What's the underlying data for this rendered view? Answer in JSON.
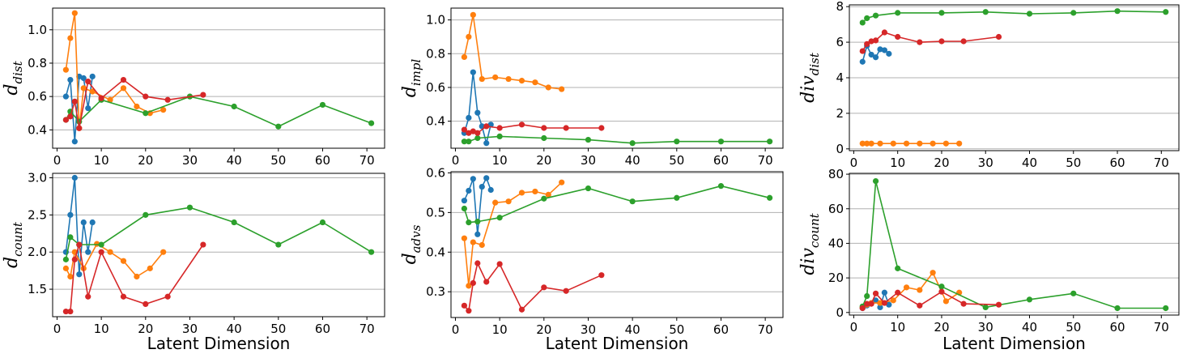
{
  "colors": {
    "blue": "#1f77b4",
    "orange": "#ff7f0e",
    "green": "#2ca02c",
    "red": "#d62728",
    "grid": "#b0b0b0"
  },
  "chart_data": [
    {
      "type": "line",
      "ylabel": {
        "base": "d",
        "sub": "dist"
      },
      "xlabel": "",
      "xlim": [
        -1,
        74
      ],
      "ylim": [
        0.29,
        1.13
      ],
      "xticks": [
        0,
        10,
        20,
        30,
        40,
        50,
        60,
        70
      ],
      "yticks": [
        0.4,
        0.6,
        0.8,
        1.0
      ],
      "ytick_labels": [
        "0.4",
        "0.6",
        "0.8",
        "1.0"
      ],
      "grid": "y",
      "series": [
        {
          "color": "blue",
          "x": [
            2,
            3,
            4,
            5,
            6,
            7,
            8
          ],
          "y": [
            0.6,
            0.7,
            0.33,
            0.72,
            0.71,
            0.53,
            0.72
          ]
        },
        {
          "color": "orange",
          "x": [
            2,
            3,
            4,
            5,
            6,
            8,
            12,
            15,
            18,
            21,
            24
          ],
          "y": [
            0.76,
            0.95,
            1.1,
            0.41,
            0.65,
            0.63,
            0.58,
            0.65,
            0.54,
            0.5,
            0.52
          ]
        },
        {
          "color": "green",
          "x": [
            2,
            3,
            5,
            10,
            20,
            30,
            40,
            50,
            60,
            71
          ],
          "y": [
            0.46,
            0.51,
            0.45,
            0.58,
            0.5,
            0.6,
            0.54,
            0.42,
            0.55,
            0.44
          ]
        },
        {
          "color": "red",
          "x": [
            2,
            3,
            4,
            5,
            7,
            10,
            15,
            20,
            25,
            33
          ],
          "y": [
            0.46,
            0.48,
            0.57,
            0.41,
            0.69,
            0.59,
            0.7,
            0.6,
            0.58,
            0.61
          ]
        }
      ]
    },
    {
      "type": "line",
      "ylabel": {
        "base": "d",
        "sub": "impl"
      },
      "xlabel": "",
      "xlim": [
        -1,
        74
      ],
      "ylim": [
        0.24,
        1.07
      ],
      "xticks": [
        0,
        10,
        20,
        30,
        40,
        50,
        60,
        70
      ],
      "yticks": [
        0.4,
        0.6,
        0.8,
        1.0
      ],
      "ytick_labels": [
        "0.4",
        "0.6",
        "0.8",
        "1.0"
      ],
      "grid": "y",
      "series": [
        {
          "color": "blue",
          "x": [
            2,
            3,
            4,
            5,
            6,
            7,
            8
          ],
          "y": [
            0.33,
            0.42,
            0.69,
            0.45,
            0.37,
            0.27,
            0.38
          ]
        },
        {
          "color": "orange",
          "x": [
            2,
            3,
            4,
            6,
            9,
            12,
            15,
            18,
            21,
            24
          ],
          "y": [
            0.78,
            0.9,
            1.03,
            0.65,
            0.66,
            0.65,
            0.64,
            0.63,
            0.6,
            0.59
          ]
        },
        {
          "color": "green",
          "x": [
            2,
            3,
            5,
            10,
            20,
            30,
            40,
            50,
            60,
            71
          ],
          "y": [
            0.28,
            0.28,
            0.3,
            0.31,
            0.3,
            0.29,
            0.27,
            0.28,
            0.28,
            0.28
          ]
        },
        {
          "color": "red",
          "x": [
            2,
            3,
            4,
            5,
            7,
            10,
            15,
            20,
            25,
            33
          ],
          "y": [
            0.35,
            0.33,
            0.34,
            0.33,
            0.37,
            0.36,
            0.38,
            0.36,
            0.36,
            0.36
          ]
        }
      ]
    },
    {
      "type": "line",
      "ylabel": {
        "base": "div",
        "sub": "dist"
      },
      "xlabel": "",
      "xlim": [
        -1,
        74
      ],
      "ylim": [
        -0.1,
        8.1
      ],
      "xticks": [
        0,
        10,
        20,
        30,
        40,
        50,
        60,
        70
      ],
      "yticks": [
        0,
        2,
        4,
        6,
        8
      ],
      "ytick_labels": [
        "0",
        "2",
        "4",
        "6",
        "8"
      ],
      "grid": "y",
      "series": [
        {
          "color": "blue",
          "x": [
            2,
            3,
            4,
            5,
            6,
            7,
            8
          ],
          "y": [
            4.9,
            5.8,
            5.3,
            5.15,
            5.6,
            5.55,
            5.35
          ]
        },
        {
          "color": "orange",
          "x": [
            2,
            3,
            4,
            6,
            9,
            12,
            15,
            18,
            21,
            24
          ],
          "y": [
            0.3,
            0.3,
            0.3,
            0.3,
            0.3,
            0.3,
            0.3,
            0.3,
            0.3,
            0.3
          ]
        },
        {
          "color": "green",
          "x": [
            2,
            3,
            5,
            10,
            20,
            30,
            40,
            50,
            60,
            71
          ],
          "y": [
            7.1,
            7.35,
            7.5,
            7.65,
            7.65,
            7.7,
            7.6,
            7.65,
            7.75,
            7.7
          ]
        },
        {
          "color": "red",
          "x": [
            2,
            3,
            4,
            5,
            7,
            10,
            15,
            20,
            25,
            33
          ],
          "y": [
            5.5,
            5.9,
            6.05,
            6.1,
            6.55,
            6.3,
            6.0,
            6.05,
            6.05,
            6.3
          ]
        }
      ]
    },
    {
      "type": "line",
      "ylabel": {
        "base": "d",
        "sub": "count"
      },
      "xlabel": "Latent Dimension",
      "xlim": [
        -1,
        74
      ],
      "ylim": [
        1.13,
        3.06
      ],
      "xticks": [
        0,
        10,
        20,
        30,
        40,
        50,
        60,
        70
      ],
      "yticks": [
        1.5,
        2.0,
        2.5,
        3.0
      ],
      "ytick_labels": [
        "1.5",
        "2.0",
        "2.5",
        "3.0"
      ],
      "grid": "y",
      "series": [
        {
          "color": "blue",
          "x": [
            2,
            3,
            4,
            5,
            6,
            7,
            8
          ],
          "y": [
            2.0,
            2.5,
            3.0,
            1.7,
            2.4,
            2.0,
            2.4
          ]
        },
        {
          "color": "orange",
          "x": [
            2,
            3,
            4,
            6,
            9,
            12,
            15,
            18,
            21,
            24
          ],
          "y": [
            1.78,
            1.67,
            2.0,
            1.78,
            2.11,
            2.0,
            1.88,
            1.67,
            1.78,
            2.0
          ]
        },
        {
          "color": "green",
          "x": [
            2,
            3,
            5,
            10,
            20,
            30,
            40,
            50,
            60,
            71
          ],
          "y": [
            1.9,
            2.2,
            2.1,
            2.1,
            2.5,
            2.6,
            2.4,
            2.1,
            2.4,
            2.0
          ]
        },
        {
          "color": "red",
          "x": [
            2,
            3,
            4,
            5,
            7,
            10,
            15,
            20,
            25,
            33
          ],
          "y": [
            1.2,
            1.2,
            1.9,
            2.1,
            1.4,
            2.0,
            1.4,
            1.3,
            1.4,
            2.1
          ]
        }
      ]
    },
    {
      "type": "line",
      "ylabel": {
        "base": "d",
        "sub": "advs"
      },
      "xlabel": "Latent Dimension",
      "xlim": [
        -1,
        74
      ],
      "ylim": [
        0.235,
        0.603
      ],
      "xticks": [
        0,
        10,
        20,
        30,
        40,
        50,
        60,
        70
      ],
      "yticks": [
        0.3,
        0.4,
        0.5,
        0.6
      ],
      "ytick_labels": [
        "0.3",
        "0.4",
        "0.5",
        "0.6"
      ],
      "grid": "y",
      "series": [
        {
          "color": "blue",
          "x": [
            2,
            3,
            4,
            5,
            6,
            7,
            8
          ],
          "y": [
            0.53,
            0.555,
            0.585,
            0.445,
            0.565,
            0.587,
            0.557
          ]
        },
        {
          "color": "orange",
          "x": [
            2,
            3,
            4,
            6,
            9,
            12,
            15,
            18,
            21,
            24
          ],
          "y": [
            0.435,
            0.315,
            0.425,
            0.418,
            0.525,
            0.528,
            0.55,
            0.553,
            0.545,
            0.576
          ]
        },
        {
          "color": "green",
          "x": [
            2,
            3,
            5,
            10,
            20,
            30,
            40,
            50,
            60,
            71
          ],
          "y": [
            0.51,
            0.475,
            0.477,
            0.487,
            0.535,
            0.561,
            0.528,
            0.537,
            0.567,
            0.537
          ]
        },
        {
          "color": "red",
          "x": [
            2,
            3,
            4,
            5,
            7,
            10,
            15,
            20,
            25,
            33
          ],
          "y": [
            0.265,
            0.252,
            0.322,
            0.372,
            0.325,
            0.37,
            0.255,
            0.311,
            0.302,
            0.342
          ]
        }
      ]
    },
    {
      "type": "line",
      "ylabel": {
        "base": "div",
        "sub": "count"
      },
      "xlabel": "Latent Dimension",
      "xlim": [
        -1,
        74
      ],
      "ylim": [
        -1.5,
        80.5
      ],
      "xticks": [
        0,
        10,
        20,
        30,
        40,
        50,
        60,
        70
      ],
      "yticks": [
        0,
        20,
        40,
        60,
        80
      ],
      "ytick_labels": [
        "0",
        "20",
        "40",
        "60",
        "80"
      ],
      "grid": "y",
      "series": [
        {
          "color": "blue",
          "x": [
            2,
            3,
            4,
            5,
            6,
            7,
            8
          ],
          "y": [
            2.5,
            4.0,
            5.5,
            7.0,
            3.0,
            11.5,
            4.5
          ]
        },
        {
          "color": "orange",
          "x": [
            2,
            3,
            4,
            6,
            9,
            12,
            15,
            18,
            21,
            24
          ],
          "y": [
            3.0,
            4.5,
            5.5,
            5.5,
            7.0,
            14.5,
            13.0,
            23.0,
            6.5,
            11.5
          ]
        },
        {
          "color": "green",
          "x": [
            2,
            3,
            5,
            10,
            20,
            30,
            40,
            50,
            60,
            71
          ],
          "y": [
            3.5,
            9.5,
            76.0,
            25.5,
            15.0,
            3.0,
            7.5,
            11.0,
            2.5,
            2.5
          ]
        },
        {
          "color": "red",
          "x": [
            2,
            3,
            4,
            5,
            7,
            10,
            15,
            20,
            25,
            33
          ],
          "y": [
            2.5,
            5.0,
            5.0,
            11.0,
            5.5,
            11.5,
            4.0,
            12.0,
            5.0,
            4.5
          ]
        }
      ]
    }
  ]
}
